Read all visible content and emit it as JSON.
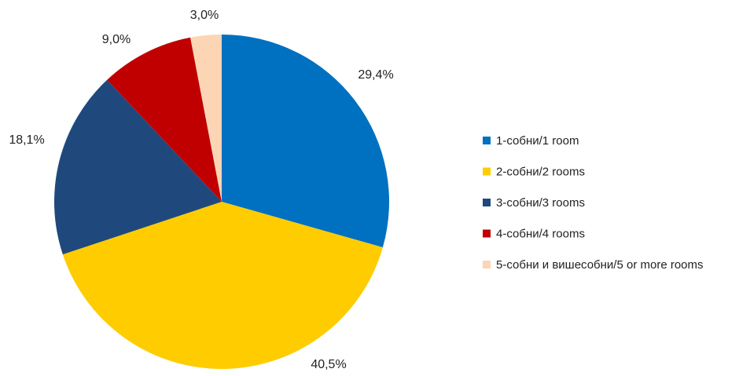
{
  "chart_data": {
    "type": "pie",
    "legend_position": "right",
    "slices": [
      {
        "label": "1-собни/1 room",
        "value": 29.4,
        "value_label": "29,4%",
        "color": "#0070C0"
      },
      {
        "label": "2-собни/2 rooms",
        "value": 40.5,
        "value_label": "40,5%",
        "color": "#FFCC00"
      },
      {
        "label": "3-собни/3 rooms",
        "value": 18.1,
        "value_label": "18,1%",
        "color": "#1F497D"
      },
      {
        "label": "4-собни/4 rooms",
        "value": 9.0,
        "value_label": "9,0%",
        "color": "#C00000"
      },
      {
        "label": "5-собни и вишесобни/5 or more rooms",
        "value": 3.0,
        "value_label": "3,0%",
        "color": "#FCD5B5"
      }
    ]
  }
}
